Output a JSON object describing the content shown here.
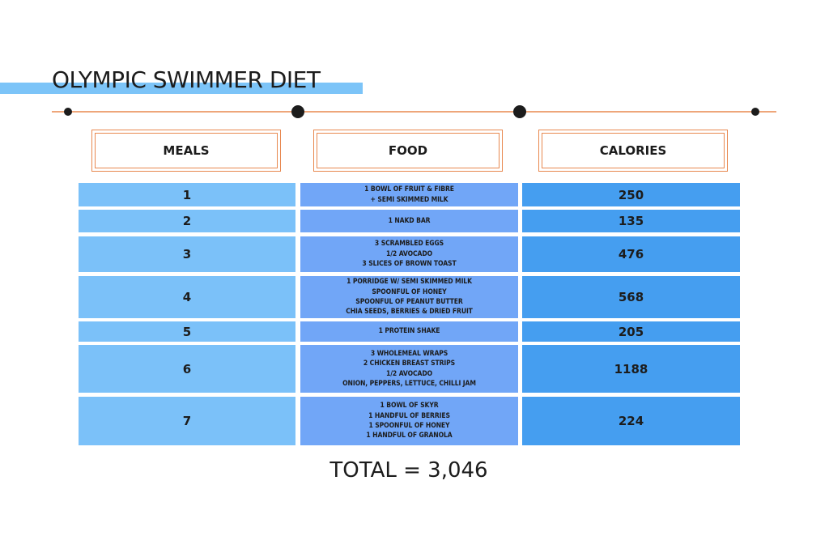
{
  "title": "OLYMPIC SWIMMER DIET",
  "colors": {
    "accent_bar": "#7cc4f8",
    "rule": "#e8884f",
    "meal_col": "#7bc1f9",
    "food_col": "#71a6f7",
    "calorie_col": "#459ef0"
  },
  "chart_data": {
    "type": "table",
    "columns": [
      "MEALS",
      "FOOD",
      "CALORIES"
    ],
    "rows": [
      {
        "meal": "1",
        "food": [
          "1 BOWL OF FRUIT & FIBRE",
          "+ SEMI SKIMMED MILK"
        ],
        "calories": "250"
      },
      {
        "meal": "2",
        "food": [
          "1 NAKD BAR"
        ],
        "calories": "135"
      },
      {
        "meal": "3",
        "food": [
          "3 SCRAMBLED EGGS",
          "1/2 AVOCADO",
          "3 SLICES OF BROWN TOAST"
        ],
        "calories": "476"
      },
      {
        "meal": "4",
        "food": [
          "1 PORRIDGE W/ SEMI SKIMMED MILK",
          "SPOONFUL OF HONEY",
          "SPOONFUL OF PEANUT BUTTER",
          "CHIA SEEDS, BERRIES & DRIED FRUIT"
        ],
        "calories": "568"
      },
      {
        "meal": "5",
        "food": [
          "1 PROTEIN SHAKE"
        ],
        "calories": "205"
      },
      {
        "meal": "6",
        "food": [
          "3 WHOLEMEAL WRAPS",
          "2 CHICKEN BREAST STRIPS",
          "1/2 AVOCADO",
          "ONION, PEPPERS, LETTUCE, CHILLI JAM"
        ],
        "calories": "1188"
      },
      {
        "meal": "7",
        "food": [
          "1 BOWL OF SKYR",
          "1 HANDFUL OF BERRIES",
          "1 SPOONFUL OF HONEY",
          "1 HANDFUL OF GRANOLA"
        ],
        "calories": "224"
      }
    ],
    "total": "TOTAL = 3,046"
  }
}
